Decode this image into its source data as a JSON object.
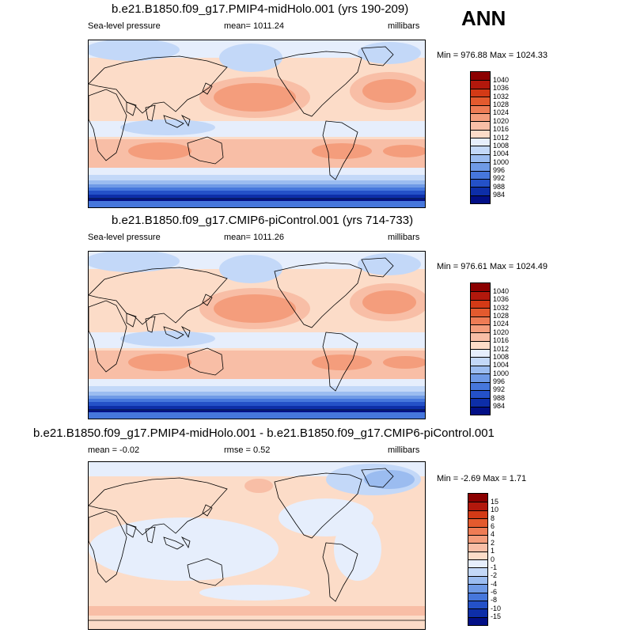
{
  "season": "ANN",
  "panels": [
    {
      "title": "b.e21.B1850.f09_g17.PMIP4-midHolo.001 (yrs 190-209)",
      "left_label": "Sea-level pressure",
      "center_label": "mean= 1011.24",
      "right_label": "millibars",
      "minmax": "Min = 976.88 Max = 1024.33",
      "type": "abs",
      "levels": [
        "1040",
        "1036",
        "1032",
        "1028",
        "1024",
        "1020",
        "1016",
        "1012",
        "1008",
        "1004",
        "1000",
        "996",
        "992",
        "988",
        "984"
      ],
      "colors": [
        "#8b0000",
        "#b2180c",
        "#d33a16",
        "#e35a2e",
        "#ee7c55",
        "#f49d7c",
        "#f8bea6",
        "#fcdcc8",
        "#e6eefc",
        "#c3d8f8",
        "#9bbcf0",
        "#6f9ae6",
        "#4677dc",
        "#2451c8",
        "#0d2ea8",
        "#020f86"
      ]
    },
    {
      "title": "b.e21.B1850.f09_g17.CMIP6-piControl.001 (yrs 714-733)",
      "left_label": "Sea-level pressure",
      "center_label": "mean= 1011.26",
      "right_label": "millibars",
      "minmax": "Min = 976.61 Max = 1024.49",
      "type": "abs",
      "levels": [
        "1040",
        "1036",
        "1032",
        "1028",
        "1024",
        "1020",
        "1016",
        "1012",
        "1008",
        "1004",
        "1000",
        "996",
        "992",
        "988",
        "984"
      ],
      "colors": [
        "#8b0000",
        "#b2180c",
        "#d33a16",
        "#e35a2e",
        "#ee7c55",
        "#f49d7c",
        "#f8bea6",
        "#fcdcc8",
        "#e6eefc",
        "#c3d8f8",
        "#9bbcf0",
        "#6f9ae6",
        "#4677dc",
        "#2451c8",
        "#0d2ea8",
        "#020f86"
      ]
    },
    {
      "title": "b.e21.B1850.f09_g17.PMIP4-midHolo.001 - b.e21.B1850.f09_g17.CMIP6-piControl.001",
      "left_label": "mean =  -0.02",
      "center_label": "rmse =   0.52",
      "right_label": "millibars",
      "minmax": "Min =  -2.69 Max =   1.71",
      "type": "diff",
      "levels": [
        "15",
        "10",
        "8",
        "6",
        "4",
        "2",
        "1",
        "0",
        "-1",
        "-2",
        "-4",
        "-6",
        "-8",
        "-10",
        "-15"
      ],
      "colors": [
        "#8b0000",
        "#b2180c",
        "#d33a16",
        "#e35a2e",
        "#ee7c55",
        "#f49d7c",
        "#f8bea6",
        "#fcdcc8",
        "#e6eefc",
        "#c3d8f8",
        "#9bbcf0",
        "#6f9ae6",
        "#4677dc",
        "#2451c8",
        "#0d2ea8",
        "#020f86"
      ]
    }
  ]
}
